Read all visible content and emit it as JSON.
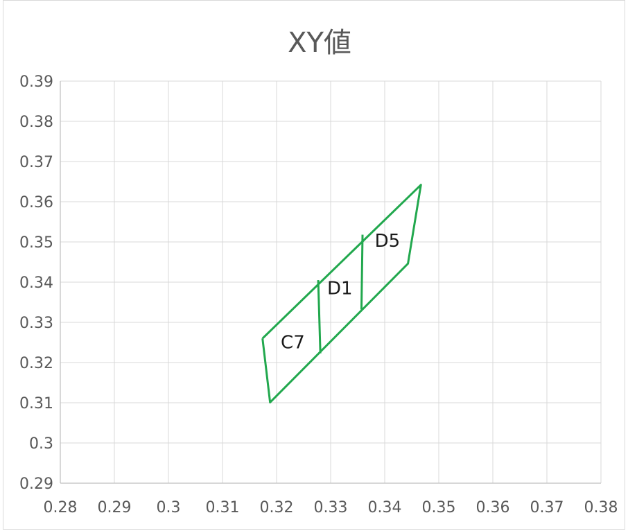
{
  "chart_data": {
    "type": "scatter",
    "title": "XY値",
    "xlim": [
      0.28,
      0.38
    ],
    "ylim": [
      0.29,
      0.39
    ],
    "x_ticks": [
      "0.28",
      "0.29",
      "0.3",
      "0.31",
      "0.32",
      "0.33",
      "0.34",
      "0.35",
      "0.36",
      "0.37",
      "0.38"
    ],
    "y_ticks": [
      "0.29",
      "0.3",
      "0.31",
      "0.32",
      "0.33",
      "0.34",
      "0.35",
      "0.36",
      "0.37",
      "0.38",
      "0.39"
    ],
    "grid": true,
    "line_color": "#22a84e",
    "outline": [
      [
        0.3174,
        0.326
      ],
      [
        0.3467,
        0.3642
      ],
      [
        0.3443,
        0.3446
      ],
      [
        0.3188,
        0.3101
      ],
      [
        0.3174,
        0.326
      ]
    ],
    "dividers": [
      [
        [
          0.3277,
          0.3405
        ],
        [
          0.3281,
          0.3223
        ]
      ],
      [
        [
          0.3359,
          0.3518
        ],
        [
          0.3357,
          0.3332
        ]
      ]
    ],
    "regions": [
      {
        "label": "C7",
        "x": 0.323,
        "y": 0.3235
      },
      {
        "label": "D1",
        "x": 0.3317,
        "y": 0.337
      },
      {
        "label": "D5",
        "x": 0.3405,
        "y": 0.3488
      }
    ]
  }
}
